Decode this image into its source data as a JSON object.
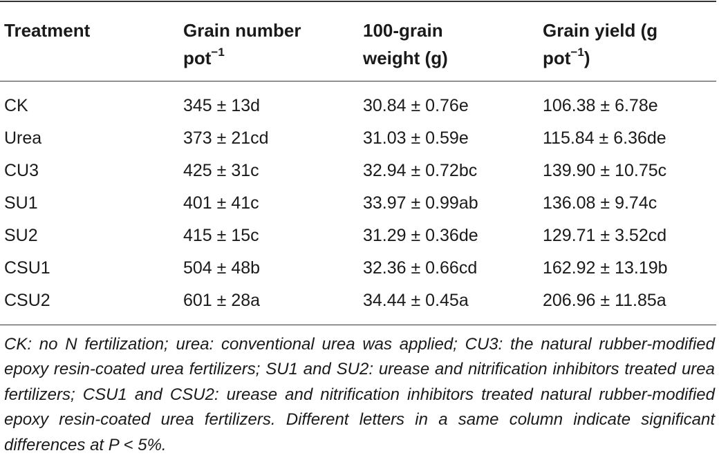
{
  "table": {
    "headers": [
      {
        "line1": "Treatment",
        "line2": "",
        "sup": ""
      },
      {
        "line1": "Grain number",
        "line2": "pot",
        "sup": "−1",
        "tail": ""
      },
      {
        "line1": "100-grain",
        "line2": "weight (g)",
        "sup": "",
        "tail": ""
      },
      {
        "line1": "Grain yield (g",
        "line2": "pot",
        "sup": "−1",
        "tail": ")"
      }
    ],
    "rows": [
      {
        "treatment": "CK",
        "grain_number": "345 ± 13d",
        "grain_weight": "30.84 ± 0.76e",
        "grain_yield": "106.38 ± 6.78e"
      },
      {
        "treatment": "Urea",
        "grain_number": "373 ± 21cd",
        "grain_weight": "31.03 ± 0.59e",
        "grain_yield": "115.84 ± 6.36de"
      },
      {
        "treatment": "CU3",
        "grain_number": "425 ± 31c",
        "grain_weight": "32.94 ± 0.72bc",
        "grain_yield": "139.90 ± 10.75c"
      },
      {
        "treatment": "SU1",
        "grain_number": "401 ± 41c",
        "grain_weight": "33.97 ± 0.99ab",
        "grain_yield": "136.08 ± 9.74c"
      },
      {
        "treatment": "SU2",
        "grain_number": "415 ± 15c",
        "grain_weight": "31.29 ± 0.36de",
        "grain_yield": "129.71 ± 3.52cd"
      },
      {
        "treatment": "CSU1",
        "grain_number": "504 ± 48b",
        "grain_weight": "32.36 ± 0.66cd",
        "grain_yield": "162.92 ± 13.19b"
      },
      {
        "treatment": "CSU2",
        "grain_number": "601 ± 28a",
        "grain_weight": "34.44 ± 0.45a",
        "grain_yield": "206.96 ± 11.85a"
      }
    ]
  },
  "footnote": "CK: no N fertilization; urea: conventional urea was applied; CU3: the natural rubber-modified epoxy resin-coated urea fertilizers; SU1 and SU2: urease and nitrification inhibitors treated urea fertilizers; CSU1 and CSU2: urease and nitrification inhibitors treated natural rubber-modified epoxy resin-coated urea fertilizers. Different letters in a same column indicate significant differences at P < 5%."
}
